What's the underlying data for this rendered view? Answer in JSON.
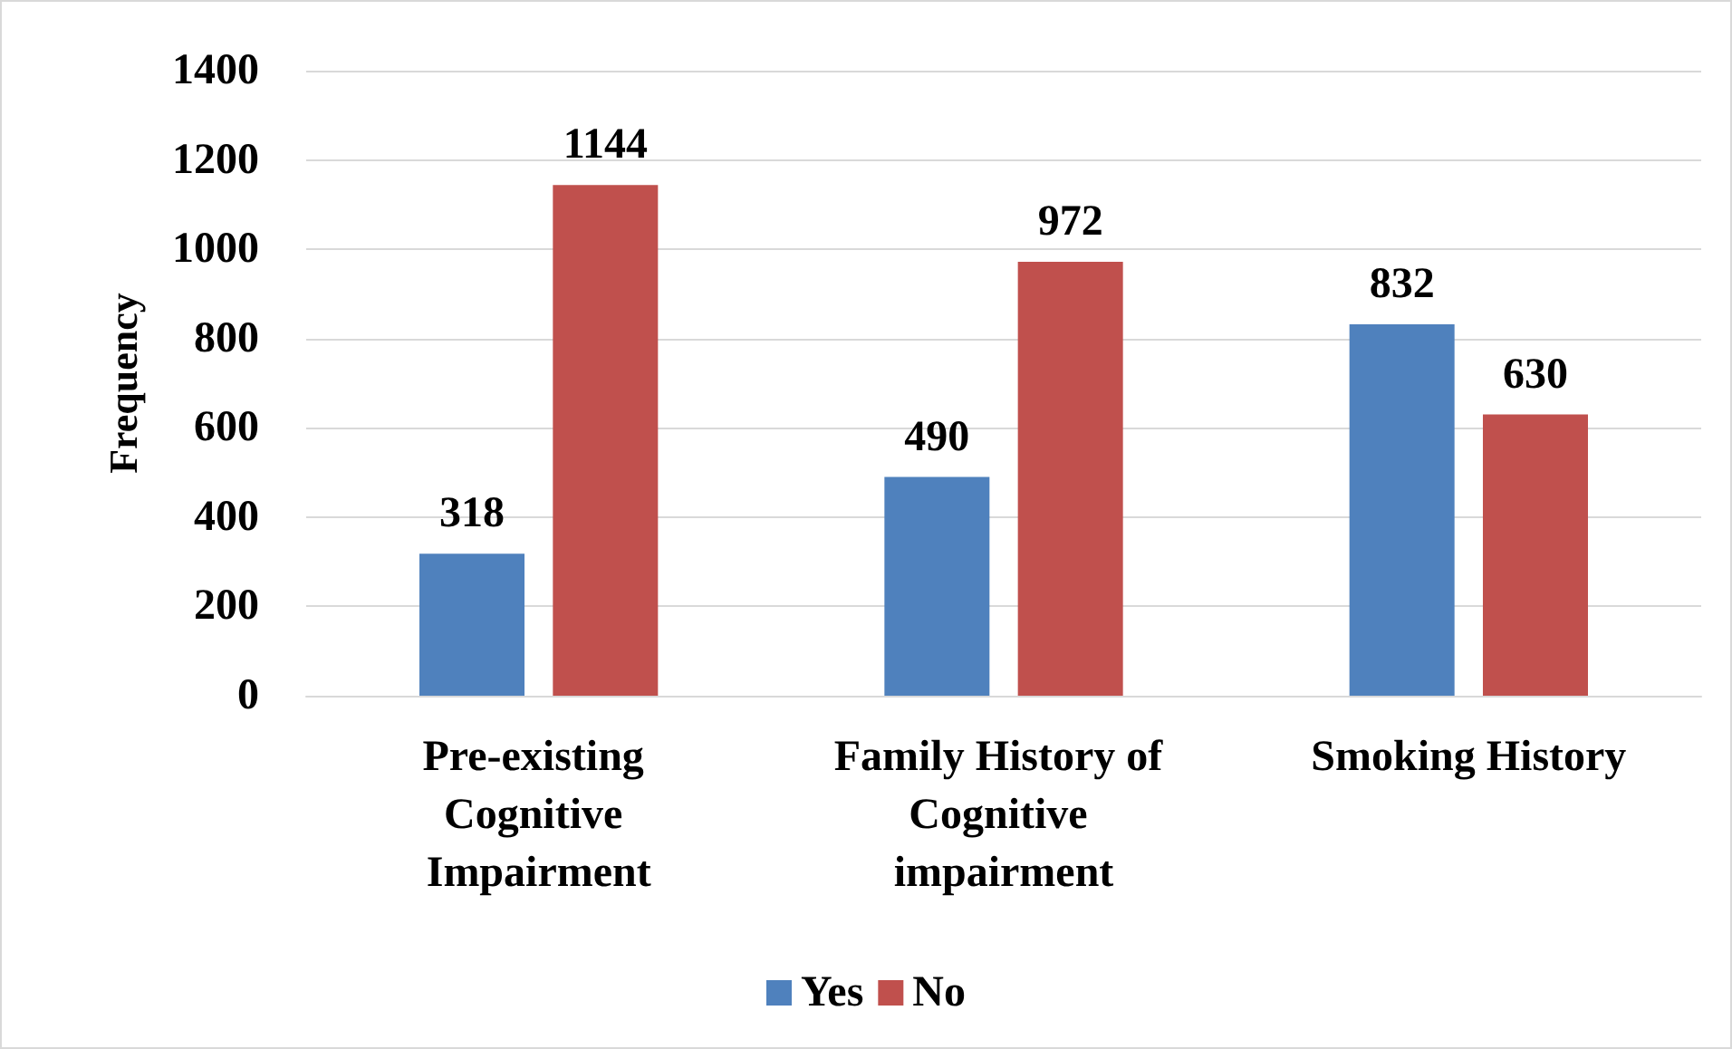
{
  "chart_data": {
    "type": "bar",
    "ylabel": "Frequency",
    "categories": [
      "Pre-existing Cognitive Impairment",
      "Family History of Cognitive impairment",
      "Smoking History"
    ],
    "series": [
      {
        "name": "Yes",
        "color": "#4f81bd",
        "values": [
          318,
          490,
          832
        ]
      },
      {
        "name": "No",
        "color": "#c0504d",
        "values": [
          1144,
          972,
          630
        ]
      }
    ],
    "ylim": [
      0,
      1400
    ],
    "yticks": [
      0,
      200,
      400,
      600,
      800,
      1000,
      1200,
      1400
    ],
    "grid": "y",
    "legend": "bottom",
    "data_labels": true
  }
}
